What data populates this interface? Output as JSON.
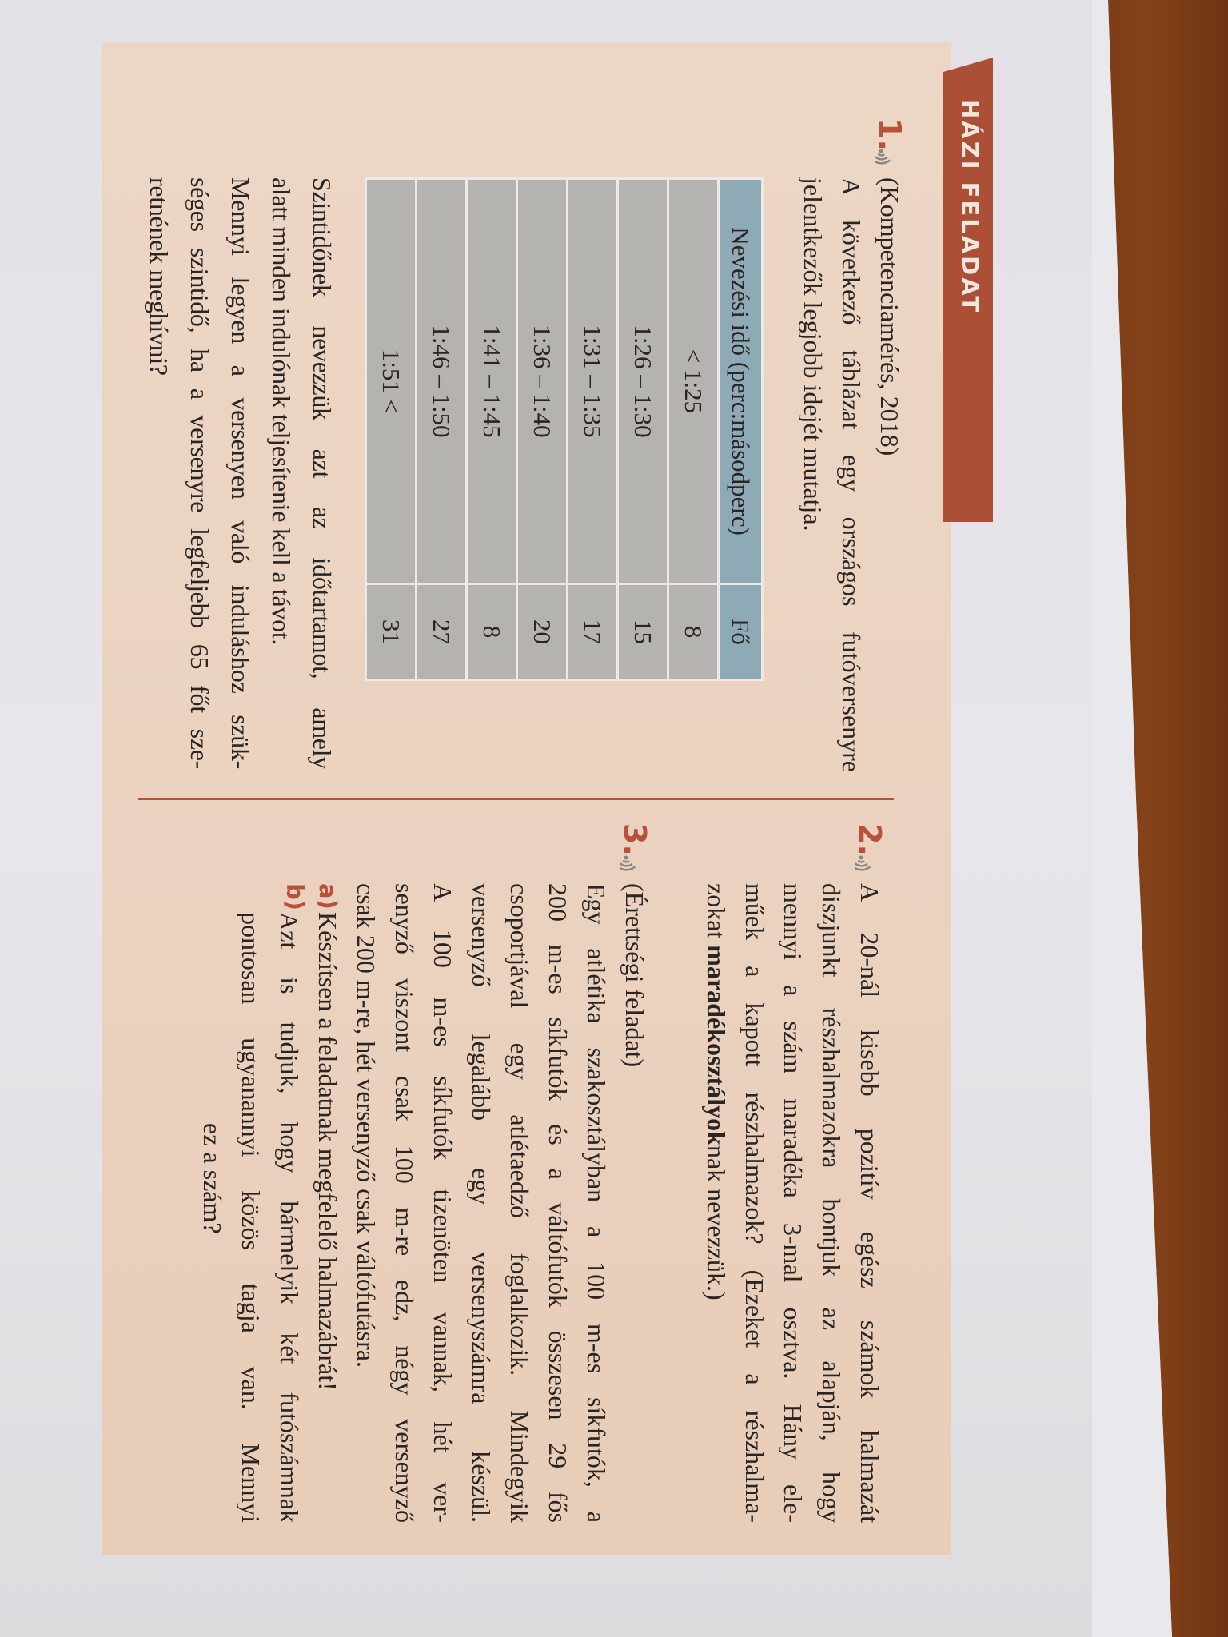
{
  "header": {
    "label": "HÁZI FELADAT"
  },
  "colors": {
    "accent": "#b8513a",
    "tab": "#ab4f36",
    "box": "#ebd2bf",
    "table_header": "#8eaab6",
    "table_body": "#b4b3af",
    "wood": "#7a3b15"
  },
  "icons": {
    "task_marker": "sound-wave-icon"
  },
  "task1": {
    "number": "1.",
    "source": "(Kompetenciamérés, 2018)",
    "intro_lines": [
      "A következő táblázat egy országos futóversenyre",
      "jelentkezők legjobb idejét mutatja."
    ],
    "table": {
      "headers": [
        "Nevezési idő (perc:másodperc)",
        "Fő"
      ],
      "rows": [
        [
          "< 1:25",
          "8"
        ],
        [
          "1:26 – 1:30",
          "15"
        ],
        [
          "1:31 – 1:35",
          "17"
        ],
        [
          "1:36 – 1:40",
          "20"
        ],
        [
          "1:41 – 1:45",
          "8"
        ],
        [
          "1:46 – 1:50",
          "27"
        ],
        [
          "1:51 <",
          "31"
        ]
      ]
    },
    "question_lines": [
      "Szintidőnek nevezzük azt az időtartamot, amely",
      "alatt minden indulónak teljesítenie kell a távot.",
      "Mennyi legyen a versenyen való induláshoz szük-",
      "séges szintidő, ha a versenyre legfeljebb 65 főt sze-",
      "retnének meghívni?"
    ]
  },
  "task2": {
    "number": "2.",
    "lines": [
      "A 20-nál kisebb pozitív egész számok halmazát",
      "diszjunkt részhalmazokra bontjuk az alapján, hogy",
      "mennyi a szám maradéka 3-mal osztva. Hány ele-",
      "műek a kapott részhalmazok? (Ezeket a részhalma-"
    ],
    "last_line": {
      "before": "zokat ",
      "bold": "maradékosztályok",
      "after": "nak nevezzük.)"
    }
  },
  "task3": {
    "number": "3.",
    "source": "(Érettségi feladat)",
    "lines": [
      "Egy atlétika szakosztályban a 100 m-es síkfutók, a",
      "200 m-es síkfutók és a váltófutók összesen 29 fős",
      "csoportjával egy atlétaedző foglalkozik. Mindegyik",
      "versenyző legalább egy versenyszámra készül.",
      "A 100 m-es síkfutók tizenöten vannak, hét ver-",
      "senyző viszont csak 100 m-re edz, négy versenyző",
      "csak 200 m-re, hét versenyző csak váltófutásra."
    ],
    "a": {
      "label": "a)",
      "lines": [
        "Készítsen a feladatnak megfelelő halmazábrát!"
      ]
    },
    "b": {
      "label": "b)",
      "lines": [
        "Azt is tudjuk, hogy bármelyik két futószámnak",
        "pontosan ugyanannyi közös tagja van. Mennyi",
        "ez a szám?"
      ]
    }
  }
}
